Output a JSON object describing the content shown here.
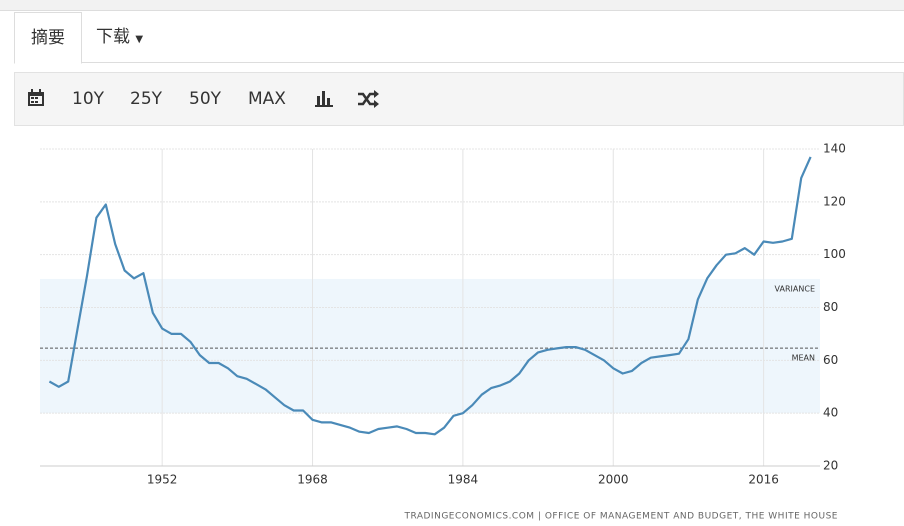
{
  "tabs": [
    "摘要",
    "下载"
  ],
  "toolbar": [
    "10Y",
    "25Y",
    "50Y",
    "MAX"
  ],
  "chart_data": {
    "type": "line",
    "x": [
      1940,
      1941,
      1942,
      1943,
      1944,
      1945,
      1946,
      1947,
      1948,
      1949,
      1950,
      1951,
      1952,
      1953,
      1954,
      1955,
      1956,
      1957,
      1958,
      1959,
      1960,
      1961,
      1962,
      1963,
      1964,
      1965,
      1966,
      1967,
      1968,
      1969,
      1970,
      1971,
      1972,
      1973,
      1974,
      1975,
      1976,
      1977,
      1978,
      1979,
      1980,
      1981,
      1982,
      1983,
      1984,
      1985,
      1986,
      1987,
      1988,
      1989,
      1990,
      1991,
      1992,
      1993,
      1994,
      1995,
      1996,
      1997,
      1998,
      1999,
      2000,
      2001,
      2002,
      2003,
      2004,
      2005,
      2006,
      2007,
      2008,
      2009,
      2010,
      2011,
      2012,
      2013,
      2014,
      2015,
      2016,
      2017,
      2018,
      2019,
      2020,
      2021
    ],
    "series": [
      {
        "color": "#4a8ab8",
        "values": [
          52,
          50,
          52,
          72,
          92,
          114,
          119,
          104,
          94,
          91,
          93,
          78,
          72,
          70,
          70,
          67,
          62,
          59,
          59,
          57,
          54,
          53,
          51,
          49,
          46,
          43,
          41,
          41,
          37.5,
          36.5,
          36.5,
          35.5,
          34.5,
          33,
          32.5,
          34,
          34.5,
          35,
          34,
          32.5,
          32.5,
          32,
          34.5,
          39,
          40,
          43,
          47,
          49.5,
          50.5,
          52,
          55,
          60,
          63,
          64,
          64.5,
          65,
          65,
          64,
          62,
          60,
          57,
          55,
          56,
          59,
          61,
          61.5,
          62,
          62.5,
          68,
          83,
          91,
          96,
          100,
          100.5,
          102.5,
          100,
          105,
          104.5,
          105,
          106,
          129,
          137
        ]
      }
    ],
    "xlim": [
      1939,
      2022
    ],
    "ylim": [
      20,
      140
    ],
    "xticks": [
      1952,
      1968,
      1984,
      2000,
      2016
    ],
    "yticks": [
      20,
      40,
      60,
      80,
      100,
      120,
      140
    ],
    "grid": true,
    "mean": 64.6,
    "mean_label": "MEAN",
    "variance": [
      40,
      90.8
    ],
    "variance_label": "VARIANCE",
    "source": "TRADINGECONOMICS.COM | OFFICE OF MANAGEMENT AND BUDGET, THE WHITE HOUSE"
  }
}
